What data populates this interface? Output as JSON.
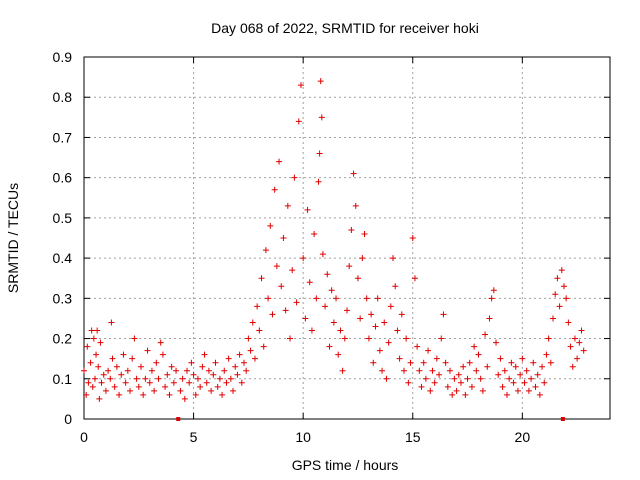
{
  "chart_data": {
    "type": "scatter",
    "title": "Day 068 of 2022, SRMTID for receiver hoki",
    "xlabel": "GPS time / hours",
    "ylabel": "SRMTID / TECUs",
    "xlim": [
      0,
      24
    ],
    "ylim": [
      0,
      0.9
    ],
    "xticks": [
      0,
      5,
      10,
      15,
      20
    ],
    "xtick_labels": [
      "0",
      "5",
      "10",
      "15",
      "20"
    ],
    "yticks": [
      0,
      0.1,
      0.2,
      0.3,
      0.4,
      0.5,
      0.6,
      0.7,
      0.8,
      0.9
    ],
    "ytick_labels": [
      "0",
      "0.1",
      "0.2",
      "0.3",
      "0.4",
      "0.5",
      "0.6",
      "0.7",
      "0.8",
      "0.9"
    ],
    "grid": true,
    "marker": "+",
    "color": "#e00000",
    "series": [
      {
        "name": "SRMTID",
        "points": [
          [
            0.0,
            0.12
          ],
          [
            0.1,
            0.06
          ],
          [
            0.15,
            0.18
          ],
          [
            0.2,
            0.09
          ],
          [
            0.3,
            0.14
          ],
          [
            0.35,
            0.22
          ],
          [
            0.4,
            0.08
          ],
          [
            0.45,
            0.2
          ],
          [
            0.5,
            0.1
          ],
          [
            0.55,
            0.16
          ],
          [
            0.6,
            0.22
          ],
          [
            0.65,
            0.13
          ],
          [
            0.7,
            0.05
          ],
          [
            0.75,
            0.19
          ],
          [
            0.8,
            0.09
          ],
          [
            0.9,
            0.11
          ],
          [
            1.0,
            0.07
          ],
          [
            1.1,
            0.12
          ],
          [
            1.2,
            0.1
          ],
          [
            1.25,
            0.24
          ],
          [
            1.3,
            0.15
          ],
          [
            1.4,
            0.08
          ],
          [
            1.5,
            0.13
          ],
          [
            1.6,
            0.06
          ],
          [
            1.7,
            0.11
          ],
          [
            1.8,
            0.16
          ],
          [
            1.9,
            0.09
          ],
          [
            2.0,
            0.12
          ],
          [
            2.1,
            0.07
          ],
          [
            2.2,
            0.15
          ],
          [
            2.3,
            0.2
          ],
          [
            2.4,
            0.1
          ],
          [
            2.5,
            0.08
          ],
          [
            2.6,
            0.13
          ],
          [
            2.7,
            0.06
          ],
          [
            2.8,
            0.1
          ],
          [
            2.9,
            0.17
          ],
          [
            3.0,
            0.09
          ],
          [
            3.1,
            0.12
          ],
          [
            3.2,
            0.07
          ],
          [
            3.3,
            0.14
          ],
          [
            3.4,
            0.1
          ],
          [
            3.5,
            0.19
          ],
          [
            3.6,
            0.16
          ],
          [
            3.7,
            0.08
          ],
          [
            3.8,
            0.11
          ],
          [
            3.9,
            0.06
          ],
          [
            4.0,
            0.13
          ],
          [
            4.1,
            0.09
          ],
          [
            4.2,
            0.12
          ],
          [
            4.3,
            0.0
          ],
          [
            4.4,
            0.07
          ],
          [
            4.5,
            0.1
          ],
          [
            4.6,
            0.05
          ],
          [
            4.7,
            0.12
          ],
          [
            4.8,
            0.09
          ],
          [
            4.9,
            0.14
          ],
          [
            5.0,
            0.11
          ],
          [
            5.1,
            0.06
          ],
          [
            5.2,
            0.1
          ],
          [
            5.3,
            0.08
          ],
          [
            5.4,
            0.13
          ],
          [
            5.5,
            0.16
          ],
          [
            5.6,
            0.09
          ],
          [
            5.7,
            0.12
          ],
          [
            5.8,
            0.07
          ],
          [
            5.9,
            0.11
          ],
          [
            6.0,
            0.14
          ],
          [
            6.1,
            0.08
          ],
          [
            6.2,
            0.1
          ],
          [
            6.3,
            0.06
          ],
          [
            6.4,
            0.12
          ],
          [
            6.5,
            0.09
          ],
          [
            6.6,
            0.15
          ],
          [
            6.7,
            0.1
          ],
          [
            6.8,
            0.07
          ],
          [
            6.9,
            0.13
          ],
          [
            7.0,
            0.11
          ],
          [
            7.1,
            0.16
          ],
          [
            7.2,
            0.09
          ],
          [
            7.3,
            0.14
          ],
          [
            7.4,
            0.12
          ],
          [
            7.5,
            0.2
          ],
          [
            7.6,
            0.17
          ],
          [
            7.7,
            0.24
          ],
          [
            7.8,
            0.15
          ],
          [
            7.9,
            0.28
          ],
          [
            8.0,
            0.22
          ],
          [
            8.1,
            0.35
          ],
          [
            8.2,
            0.18
          ],
          [
            8.3,
            0.42
          ],
          [
            8.4,
            0.3
          ],
          [
            8.5,
            0.48
          ],
          [
            8.6,
            0.26
          ],
          [
            8.7,
            0.57
          ],
          [
            8.8,
            0.38
          ],
          [
            8.9,
            0.64
          ],
          [
            9.0,
            0.33
          ],
          [
            9.1,
            0.45
          ],
          [
            9.2,
            0.27
          ],
          [
            9.3,
            0.53
          ],
          [
            9.4,
            0.2
          ],
          [
            9.5,
            0.37
          ],
          [
            9.6,
            0.6
          ],
          [
            9.7,
            0.29
          ],
          [
            9.8,
            0.74
          ],
          [
            9.9,
            0.83
          ],
          [
            10.0,
            0.4
          ],
          [
            10.1,
            0.25
          ],
          [
            10.2,
            0.52
          ],
          [
            10.3,
            0.34
          ],
          [
            10.4,
            0.22
          ],
          [
            10.5,
            0.46
          ],
          [
            10.6,
            0.3
          ],
          [
            10.7,
            0.59
          ],
          [
            10.75,
            0.66
          ],
          [
            10.8,
            0.84
          ],
          [
            10.85,
            0.75
          ],
          [
            10.9,
            0.41
          ],
          [
            11.0,
            0.28
          ],
          [
            11.1,
            0.36
          ],
          [
            11.2,
            0.18
          ],
          [
            11.3,
            0.32
          ],
          [
            11.4,
            0.24
          ],
          [
            11.5,
            0.3
          ],
          [
            11.6,
            0.16
          ],
          [
            11.7,
            0.22
          ],
          [
            11.8,
            0.12
          ],
          [
            11.9,
            0.2
          ],
          [
            12.0,
            0.27
          ],
          [
            12.1,
            0.38
          ],
          [
            12.2,
            0.47
          ],
          [
            12.3,
            0.61
          ],
          [
            12.4,
            0.53
          ],
          [
            12.5,
            0.35
          ],
          [
            12.6,
            0.25
          ],
          [
            12.7,
            0.4
          ],
          [
            12.8,
            0.46
          ],
          [
            12.9,
            0.3
          ],
          [
            13.0,
            0.2
          ],
          [
            13.1,
            0.26
          ],
          [
            13.2,
            0.14
          ],
          [
            13.3,
            0.23
          ],
          [
            13.4,
            0.3
          ],
          [
            13.5,
            0.17
          ],
          [
            13.6,
            0.12
          ],
          [
            13.7,
            0.24
          ],
          [
            13.8,
            0.1
          ],
          [
            13.9,
            0.19
          ],
          [
            14.0,
            0.28
          ],
          [
            14.1,
            0.4
          ],
          [
            14.2,
            0.33
          ],
          [
            14.3,
            0.22
          ],
          [
            14.4,
            0.15
          ],
          [
            14.5,
            0.26
          ],
          [
            14.6,
            0.12
          ],
          [
            14.7,
            0.2
          ],
          [
            14.8,
            0.09
          ],
          [
            14.9,
            0.14
          ],
          [
            15.0,
            0.45
          ],
          [
            15.1,
            0.35
          ],
          [
            15.2,
            0.18
          ],
          [
            15.3,
            0.12
          ],
          [
            15.4,
            0.08
          ],
          [
            15.5,
            0.14
          ],
          [
            15.6,
            0.1
          ],
          [
            15.7,
            0.17
          ],
          [
            15.8,
            0.07
          ],
          [
            15.9,
            0.12
          ],
          [
            16.0,
            0.09
          ],
          [
            16.1,
            0.15
          ],
          [
            16.2,
            0.11
          ],
          [
            16.3,
            0.2
          ],
          [
            16.4,
            0.26
          ],
          [
            16.5,
            0.14
          ],
          [
            16.6,
            0.08
          ],
          [
            16.7,
            0.12
          ],
          [
            16.8,
            0.06
          ],
          [
            16.9,
            0.1
          ],
          [
            17.0,
            0.07
          ],
          [
            17.1,
            0.11
          ],
          [
            17.2,
            0.09
          ],
          [
            17.3,
            0.13
          ],
          [
            17.4,
            0.06
          ],
          [
            17.5,
            0.1
          ],
          [
            17.6,
            0.14
          ],
          [
            17.7,
            0.08
          ],
          [
            17.8,
            0.18
          ],
          [
            17.9,
            0.12
          ],
          [
            18.0,
            0.16
          ],
          [
            18.1,
            0.1
          ],
          [
            18.2,
            0.07
          ],
          [
            18.3,
            0.21
          ],
          [
            18.4,
            0.13
          ],
          [
            18.5,
            0.25
          ],
          [
            18.6,
            0.3
          ],
          [
            18.7,
            0.32
          ],
          [
            18.8,
            0.19
          ],
          [
            18.9,
            0.11
          ],
          [
            19.0,
            0.15
          ],
          [
            19.1,
            0.08
          ],
          [
            19.2,
            0.12
          ],
          [
            19.3,
            0.06
          ],
          [
            19.4,
            0.1
          ],
          [
            19.5,
            0.14
          ],
          [
            19.6,
            0.09
          ],
          [
            19.7,
            0.13
          ],
          [
            19.8,
            0.07
          ],
          [
            19.9,
            0.11
          ],
          [
            20.0,
            0.15
          ],
          [
            20.1,
            0.09
          ],
          [
            20.2,
            0.12
          ],
          [
            20.3,
            0.07
          ],
          [
            20.4,
            0.1
          ],
          [
            20.5,
            0.14
          ],
          [
            20.6,
            0.08
          ],
          [
            20.7,
            0.11
          ],
          [
            20.8,
            0.06
          ],
          [
            20.9,
            0.13
          ],
          [
            21.0,
            0.09
          ],
          [
            21.1,
            0.16
          ],
          [
            21.2,
            0.2
          ],
          [
            21.3,
            0.14
          ],
          [
            21.4,
            0.25
          ],
          [
            21.5,
            0.31
          ],
          [
            21.6,
            0.35
          ],
          [
            21.7,
            0.28
          ],
          [
            21.8,
            0.37
          ],
          [
            21.85,
            0.0
          ],
          [
            21.9,
            0.33
          ],
          [
            22.0,
            0.3
          ],
          [
            22.1,
            0.24
          ],
          [
            22.2,
            0.18
          ],
          [
            22.3,
            0.13
          ],
          [
            22.4,
            0.2
          ],
          [
            22.5,
            0.15
          ],
          [
            22.6,
            0.19
          ],
          [
            22.7,
            0.22
          ],
          [
            22.8,
            0.17
          ]
        ]
      }
    ]
  }
}
